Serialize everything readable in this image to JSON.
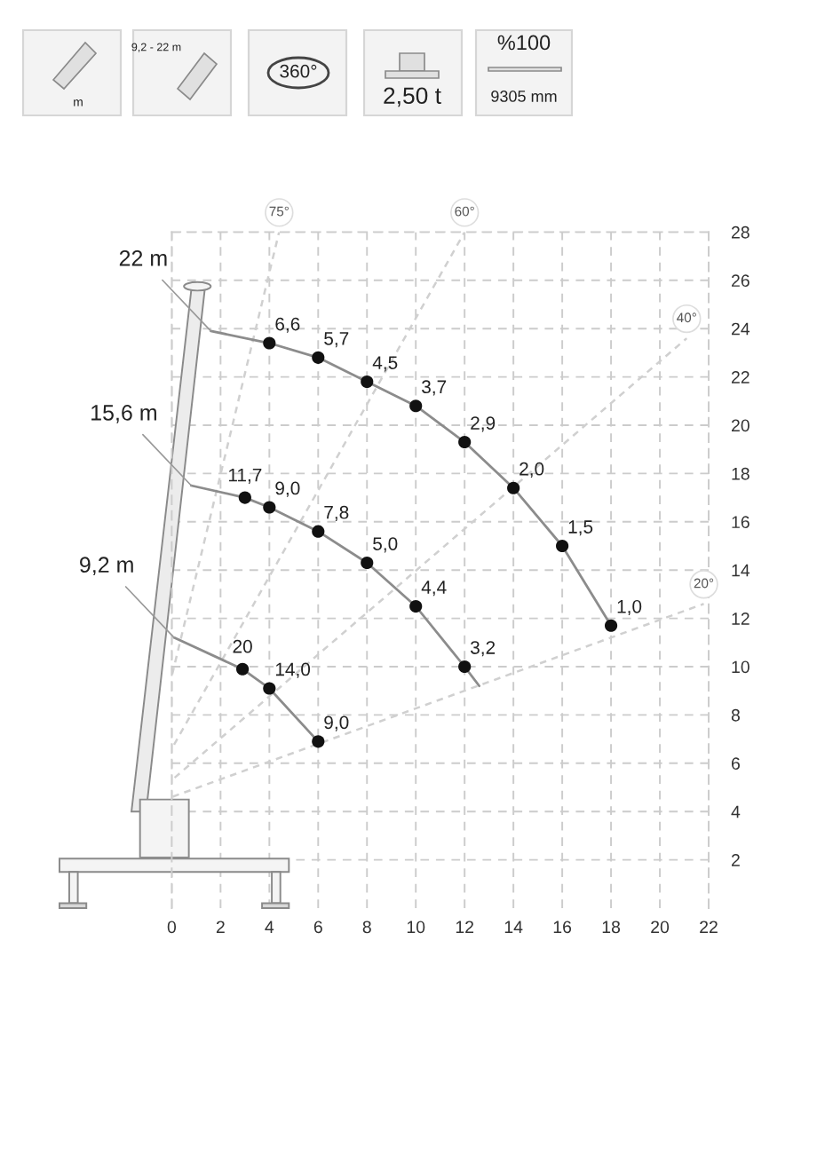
{
  "chart_data": {
    "type": "line",
    "xlim": [
      0,
      22
    ],
    "ylim": [
      0,
      28
    ],
    "xticks": [
      0,
      2,
      4,
      6,
      8,
      10,
      12,
      14,
      16,
      18,
      20,
      22
    ],
    "yticks": [
      2,
      4,
      6,
      8,
      10,
      12,
      14,
      16,
      18,
      20,
      22,
      24,
      26,
      28
    ],
    "grid": true,
    "series": [
      {
        "name": "75°",
        "line_style": "dashed",
        "color": "#d0d0d0",
        "x": [
          0,
          4.4
        ],
        "values": [
          9.6,
          28
        ]
      },
      {
        "name": "60°",
        "line_style": "dashed",
        "color": "#d0d0d0",
        "x": [
          0,
          12
        ],
        "values": [
          6.6,
          28
        ]
      },
      {
        "name": "40°",
        "line_style": "dashed",
        "color": "#d0d0d0",
        "x": [
          0,
          21.1
        ],
        "values": [
          5.3,
          23.6
        ]
      },
      {
        "name": "20°",
        "line_style": "dashed",
        "color": "#d0d0d0",
        "x": [
          0,
          21.8
        ],
        "values": [
          4.6,
          12.6
        ]
      },
      {
        "name": "22 m",
        "line_style": "solid",
        "color": "#8c8c8c",
        "x": [
          1.6,
          4,
          6,
          8,
          10,
          12,
          14,
          16,
          18
        ],
        "values": [
          23.9,
          23.4,
          22.8,
          21.8,
          20.8,
          19.3,
          17.4,
          15.0,
          11.7
        ]
      },
      {
        "type": "scatter",
        "marker": "circle",
        "color": "#111111",
        "x": [
          4,
          6,
          8,
          10,
          12,
          14,
          16,
          18
        ],
        "values": [
          23.4,
          22.8,
          21.8,
          20.8,
          19.3,
          17.4,
          15.0,
          11.7
        ]
      },
      {
        "name": "15,6 m",
        "line_style": "solid",
        "color": "#8c8c8c",
        "x": [
          0.8,
          3,
          4,
          6,
          8,
          10,
          12,
          12.6
        ],
        "values": [
          17.5,
          17.0,
          16.6,
          15.6,
          14.3,
          12.5,
          10.0,
          9.2
        ]
      },
      {
        "type": "scatter",
        "marker": "circle",
        "color": "#111111",
        "x": [
          3,
          4,
          6,
          8,
          10,
          12
        ],
        "values": [
          17.0,
          16.6,
          15.6,
          14.3,
          12.5,
          10.0
        ]
      },
      {
        "name": "9,2 m",
        "line_style": "solid",
        "color": "#8c8c8c",
        "x": [
          0.1,
          2.9,
          4,
          6
        ],
        "values": [
          11.2,
          9.9,
          9.1,
          6.9
        ]
      },
      {
        "type": "scatter",
        "marker": "circle",
        "color": "#111111",
        "x": [
          2.9,
          4,
          6
        ],
        "values": [
          9.9,
          9.1,
          6.9
        ]
      }
    ],
    "annotations": [
      "m",
      "9,2 - 22 m",
      "360°",
      "2,50 t",
      "%100",
      "9305 mm",
      {
        "text": "6,6",
        "x": 4,
        "y": 23.4
      },
      {
        "text": "5,7",
        "x": 6,
        "y": 22.8
      },
      {
        "text": "4,5",
        "x": 8,
        "y": 21.8
      },
      {
        "text": "3,7",
        "x": 10,
        "y": 20.8
      },
      {
        "text": "2,9",
        "x": 12,
        "y": 19.3
      },
      {
        "text": "2,0",
        "x": 14,
        "y": 17.4
      },
      {
        "text": "1,5",
        "x": 16,
        "y": 15.0
      },
      {
        "text": "1,0",
        "x": 18,
        "y": 11.7
      },
      {
        "text": "11,7",
        "x": 3,
        "y": 17.0
      },
      {
        "text": "9,0",
        "x": 4,
        "y": 16.6
      },
      {
        "text": "7,8",
        "x": 6,
        "y": 15.6
      },
      {
        "text": "5,0",
        "x": 8,
        "y": 14.3
      },
      {
        "text": "4,4",
        "x": 10,
        "y": 12.5
      },
      {
        "text": "3,2",
        "x": 12,
        "y": 10.0
      },
      {
        "text": "20",
        "x": 2.9,
        "y": 9.9
      },
      {
        "text": "14,0",
        "x": 4,
        "y": 9.1
      },
      {
        "text": "9,0",
        "x": 6,
        "y": 6.9
      }
    ]
  }
}
